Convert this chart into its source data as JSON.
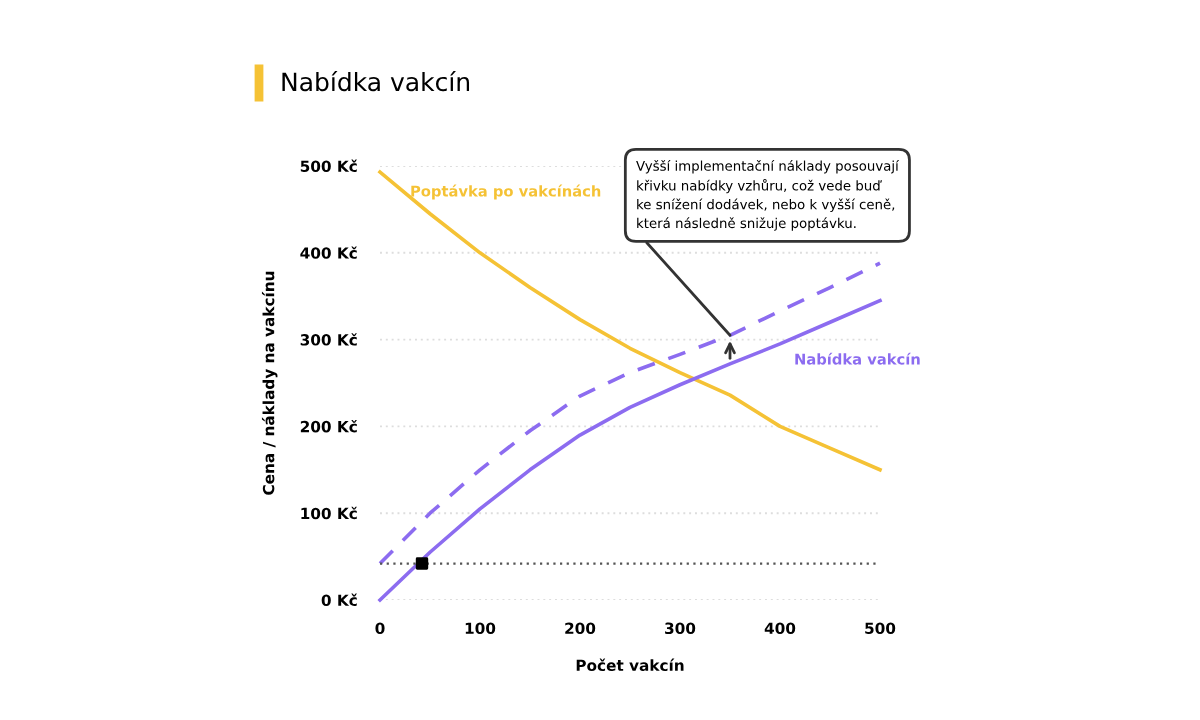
{
  "chart_data": {
    "type": "line",
    "title": "Nabídka vakcín",
    "xlabel": "Počet vakcín",
    "ylabel": "Cena / náklady na vakcínu",
    "x": [
      0,
      50,
      100,
      150,
      200,
      250,
      300,
      350,
      400,
      450,
      500
    ],
    "series": [
      {
        "name": "Poptávka po vakcínách",
        "color": "#f5c235",
        "values": [
          493,
          445,
          400,
          360,
          323,
          290,
          262,
          236,
          200,
          175,
          150
        ]
      },
      {
        "name": "Nabídka vakcín",
        "color": "#8c6cf0",
        "values": [
          0,
          55,
          105,
          150,
          190,
          222,
          248,
          272,
          295,
          320,
          345
        ]
      },
      {
        "color": "#8c6cf0",
        "line_style": "dashed",
        "values": [
          42,
          100,
          150,
          195,
          235,
          262,
          283,
          305,
          333,
          360,
          388
        ]
      },
      {
        "type": "scatter",
        "color": "#000000",
        "marker": "square",
        "x": [
          42
        ],
        "values": [
          42
        ]
      }
    ],
    "ref_lines": [
      {
        "axis": "y",
        "value": 42,
        "color": "#555555",
        "line_style": "dotted"
      }
    ],
    "annotations": [
      {
        "text": "Vyšší implementační náklady posouvají\nkřivku nabídky vzhůru, což vede buď\nke snížení dodávek, nebo k vyšší ceně,\nkterá následně snižuje poptávku.",
        "x": 350,
        "y": 305
      }
    ],
    "xlim": [
      0,
      500
    ],
    "xticks": [
      0,
      100,
      200,
      300,
      400,
      500
    ],
    "ylim": [
      0,
      500
    ],
    "yticks": [
      {
        "value": 0,
        "label": "0 Kč"
      },
      {
        "value": 100,
        "label": "100 Kč"
      },
      {
        "value": 200,
        "label": "200 Kč"
      },
      {
        "value": 300,
        "label": "300 Kč"
      },
      {
        "value": 400,
        "label": "400 Kč"
      },
      {
        "value": 500,
        "label": "500 Kč"
      }
    ],
    "grid": "y",
    "legend": false
  }
}
